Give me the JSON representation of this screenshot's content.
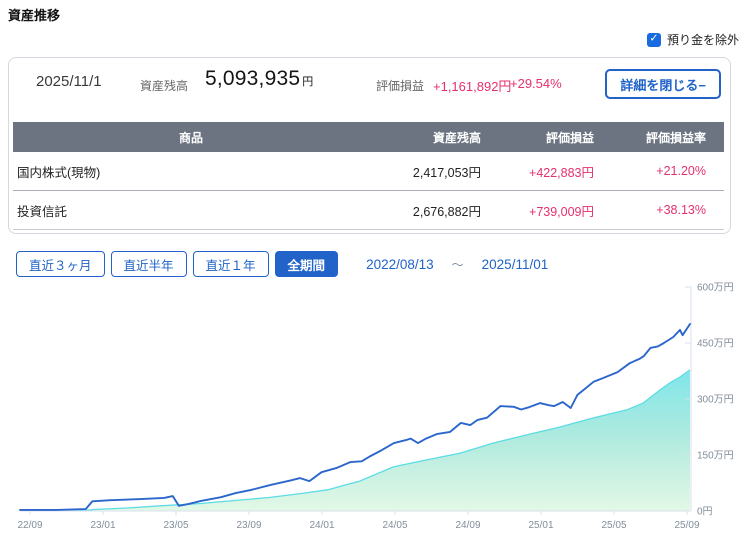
{
  "page": {
    "title": "資産推移"
  },
  "filter": {
    "checkbox_label": "預り金を除外",
    "checked": true
  },
  "summary": {
    "date": "2025/11/1",
    "balance_label": "資産残高",
    "balance_value": "5,093,935",
    "balance_unit": "円",
    "pl_label": "評価損益",
    "pl_value": "+1,161,892円",
    "pl_rate": "+29.54%",
    "detail_button": "詳細を閉じる−"
  },
  "table": {
    "headers": {
      "product": "商品",
      "balance": "資産残高",
      "pl": "評価損益",
      "rate": "評価損益率"
    },
    "rows": [
      {
        "product": "国内株式(現物)",
        "balance": "2,417,053円",
        "pl": "+422,883円",
        "rate": "+21.20%"
      },
      {
        "product": "投資信託",
        "balance": "2,676,882円",
        "pl": "+739,009円",
        "rate": "+38.13%"
      }
    ]
  },
  "period": {
    "buttons": [
      {
        "label": "直近３ヶ月",
        "selected": false
      },
      {
        "label": "直近半年",
        "selected": false
      },
      {
        "label": "直近１年",
        "selected": false
      },
      {
        "label": "全期間",
        "selected": true
      }
    ],
    "range_start": "2022/08/13",
    "range_separator": "～",
    "range_end": "2025/11/01"
  },
  "chart_data": {
    "type": "area",
    "title": "",
    "xlabel": "",
    "ylabel": "",
    "unit": "万円",
    "ylim": [
      0,
      600
    ],
    "grid": false,
    "legend": "none",
    "x_range": [
      "2022/08/13",
      "2025/11/01"
    ],
    "x_ticks": [
      "22/09",
      "23/01",
      "23/05",
      "23/09",
      "24/01",
      "24/05",
      "24/09",
      "25/01",
      "25/05",
      "25/09"
    ],
    "y_ticks": [
      {
        "value": 0,
        "label": "0円"
      },
      {
        "value": 150,
        "label": "150万円"
      },
      {
        "value": 300,
        "label": "300万円"
      },
      {
        "value": 450,
        "label": "450万円"
      },
      {
        "value": 600,
        "label": "600万円"
      }
    ],
    "colors": {
      "line": "#2b66cc",
      "area_edge": "#5cdce4",
      "area_fill_top": "#79e5ec",
      "area_fill_mid": "#aeeadf",
      "area_fill_bottom": "#e3f8e6",
      "axis": "#d8e2ec",
      "tick_text": "#828e9a"
    },
    "series": [
      {
        "name": "line_total_assets",
        "type": "line",
        "points": [
          [
            0,
            3
          ],
          [
            0.055,
            3
          ],
          [
            0.098,
            5
          ],
          [
            0.108,
            26
          ],
          [
            0.135,
            29
          ],
          [
            0.18,
            32
          ],
          [
            0.215,
            35
          ],
          [
            0.228,
            40
          ],
          [
            0.237,
            14
          ],
          [
            0.252,
            19
          ],
          [
            0.27,
            27
          ],
          [
            0.3,
            37
          ],
          [
            0.322,
            48
          ],
          [
            0.344,
            56
          ],
          [
            0.374,
            70
          ],
          [
            0.404,
            82
          ],
          [
            0.418,
            88
          ],
          [
            0.432,
            80
          ],
          [
            0.45,
            104
          ],
          [
            0.472,
            115
          ],
          [
            0.493,
            131
          ],
          [
            0.51,
            133
          ],
          [
            0.523,
            147
          ],
          [
            0.54,
            163
          ],
          [
            0.558,
            182
          ],
          [
            0.576,
            190
          ],
          [
            0.583,
            194
          ],
          [
            0.594,
            182
          ],
          [
            0.606,
            194
          ],
          [
            0.622,
            206
          ],
          [
            0.642,
            212
          ],
          [
            0.658,
            236
          ],
          [
            0.672,
            230
          ],
          [
            0.683,
            244
          ],
          [
            0.697,
            250
          ],
          [
            0.717,
            281
          ],
          [
            0.737,
            279
          ],
          [
            0.748,
            272
          ],
          [
            0.758,
            277
          ],
          [
            0.776,
            289
          ],
          [
            0.79,
            283
          ],
          [
            0.797,
            281
          ],
          [
            0.81,
            292
          ],
          [
            0.822,
            276
          ],
          [
            0.832,
            311
          ],
          [
            0.841,
            324
          ],
          [
            0.856,
            346
          ],
          [
            0.87,
            356
          ],
          [
            0.892,
            372
          ],
          [
            0.91,
            396
          ],
          [
            0.925,
            408
          ],
          [
            0.931,
            415
          ],
          [
            0.941,
            437
          ],
          [
            0.952,
            441
          ],
          [
            0.961,
            450
          ],
          [
            0.975,
            466
          ],
          [
            0.985,
            485
          ],
          [
            0.989,
            471
          ],
          [
            1,
            501
          ]
        ]
      },
      {
        "name": "area_lower",
        "type": "area",
        "points": [
          [
            0,
            1
          ],
          [
            0.1,
            2
          ],
          [
            0.11,
            4
          ],
          [
            0.16,
            8
          ],
          [
            0.21,
            14
          ],
          [
            0.27,
            20
          ],
          [
            0.32,
            28
          ],
          [
            0.37,
            36
          ],
          [
            0.42,
            47
          ],
          [
            0.46,
            57
          ],
          [
            0.49,
            72
          ],
          [
            0.507,
            80
          ],
          [
            0.557,
            118
          ],
          [
            0.607,
            137
          ],
          [
            0.657,
            155
          ],
          [
            0.706,
            182
          ],
          [
            0.757,
            204
          ],
          [
            0.806,
            225
          ],
          [
            0.855,
            249
          ],
          [
            0.906,
            271
          ],
          [
            0.93,
            289
          ],
          [
            0.955,
            324
          ],
          [
            0.97,
            343
          ],
          [
            0.985,
            359
          ],
          [
            1,
            378
          ]
        ]
      }
    ]
  }
}
